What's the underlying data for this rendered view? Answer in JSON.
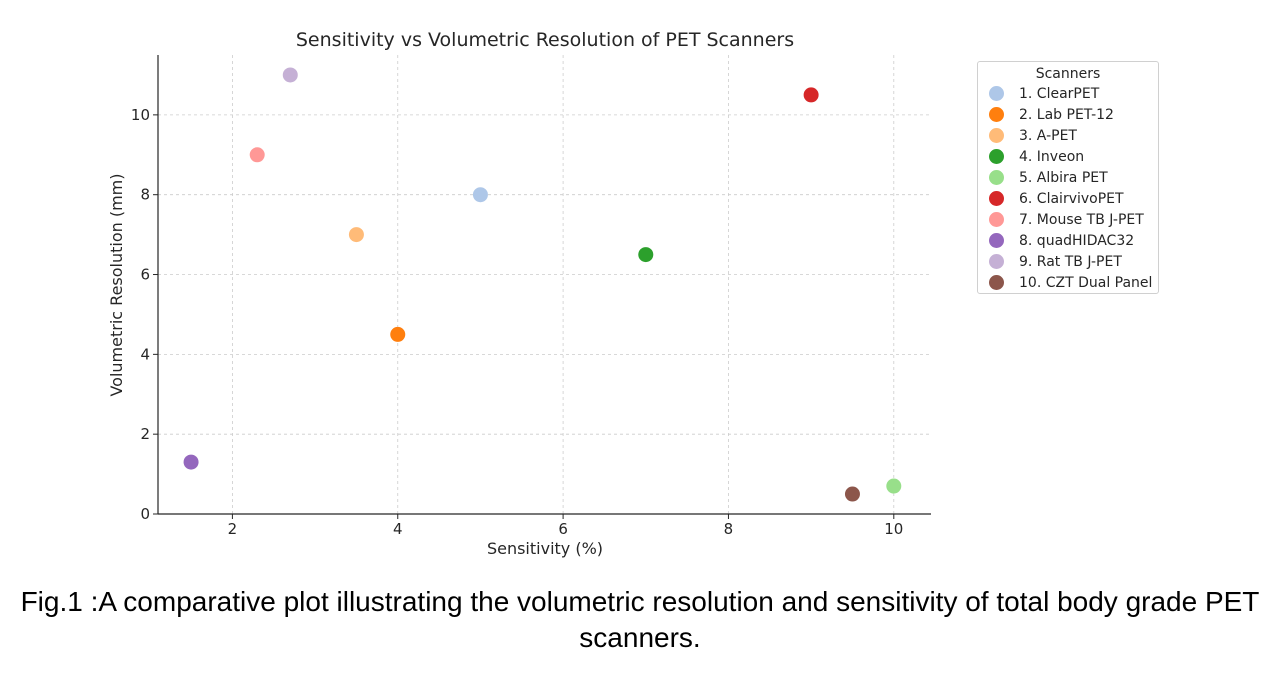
{
  "chart_data": {
    "type": "scatter",
    "title": "Sensitivity vs Volumetric Resolution of PET Scanners",
    "xlabel": "Sensitivity (%)",
    "ylabel": "Volumetric Resolution (mm)",
    "xlim": [
      1.1,
      10.45
    ],
    "ylim": [
      0,
      11.5
    ],
    "xticks": [
      2,
      4,
      6,
      8,
      10
    ],
    "yticks": [
      0,
      2,
      4,
      6,
      8,
      10
    ],
    "grid": true,
    "legend": {
      "title": "Scanners",
      "placement": "outside-right"
    },
    "series": [
      {
        "name": "1. ClearPET",
        "x": 5.0,
        "y": 8.0,
        "color": "#aec7e8"
      },
      {
        "name": "2. Lab PET-12",
        "x": 4.0,
        "y": 4.5,
        "color": "#ff7f0e"
      },
      {
        "name": "3. A-PET",
        "x": 3.5,
        "y": 7.0,
        "color": "#ffbb78"
      },
      {
        "name": "4. Inveon",
        "x": 7.0,
        "y": 6.5,
        "color": "#2ca02c"
      },
      {
        "name": "5. Albira PET",
        "x": 10.0,
        "y": 0.7,
        "color": "#98df8a"
      },
      {
        "name": "6. ClairvivoPET",
        "x": 9.0,
        "y": 10.5,
        "color": "#d62728"
      },
      {
        "name": "7. Mouse TB J-PET",
        "x": 2.3,
        "y": 9.0,
        "color": "#ff9896"
      },
      {
        "name": "8. quadHIDAC32",
        "x": 1.5,
        "y": 1.3,
        "color": "#9467bd"
      },
      {
        "name": "9. Rat TB J-PET",
        "x": 2.7,
        "y": 11.0,
        "color": "#c5b0d5"
      },
      {
        "name": "10. CZT Dual Panel",
        "x": 9.5,
        "y": 0.5,
        "color": "#8c564b"
      }
    ]
  },
  "caption": "Fig.1 :A comparative plot illustrating the volumetric resolution and sensitivity of total body grade PET scanners."
}
